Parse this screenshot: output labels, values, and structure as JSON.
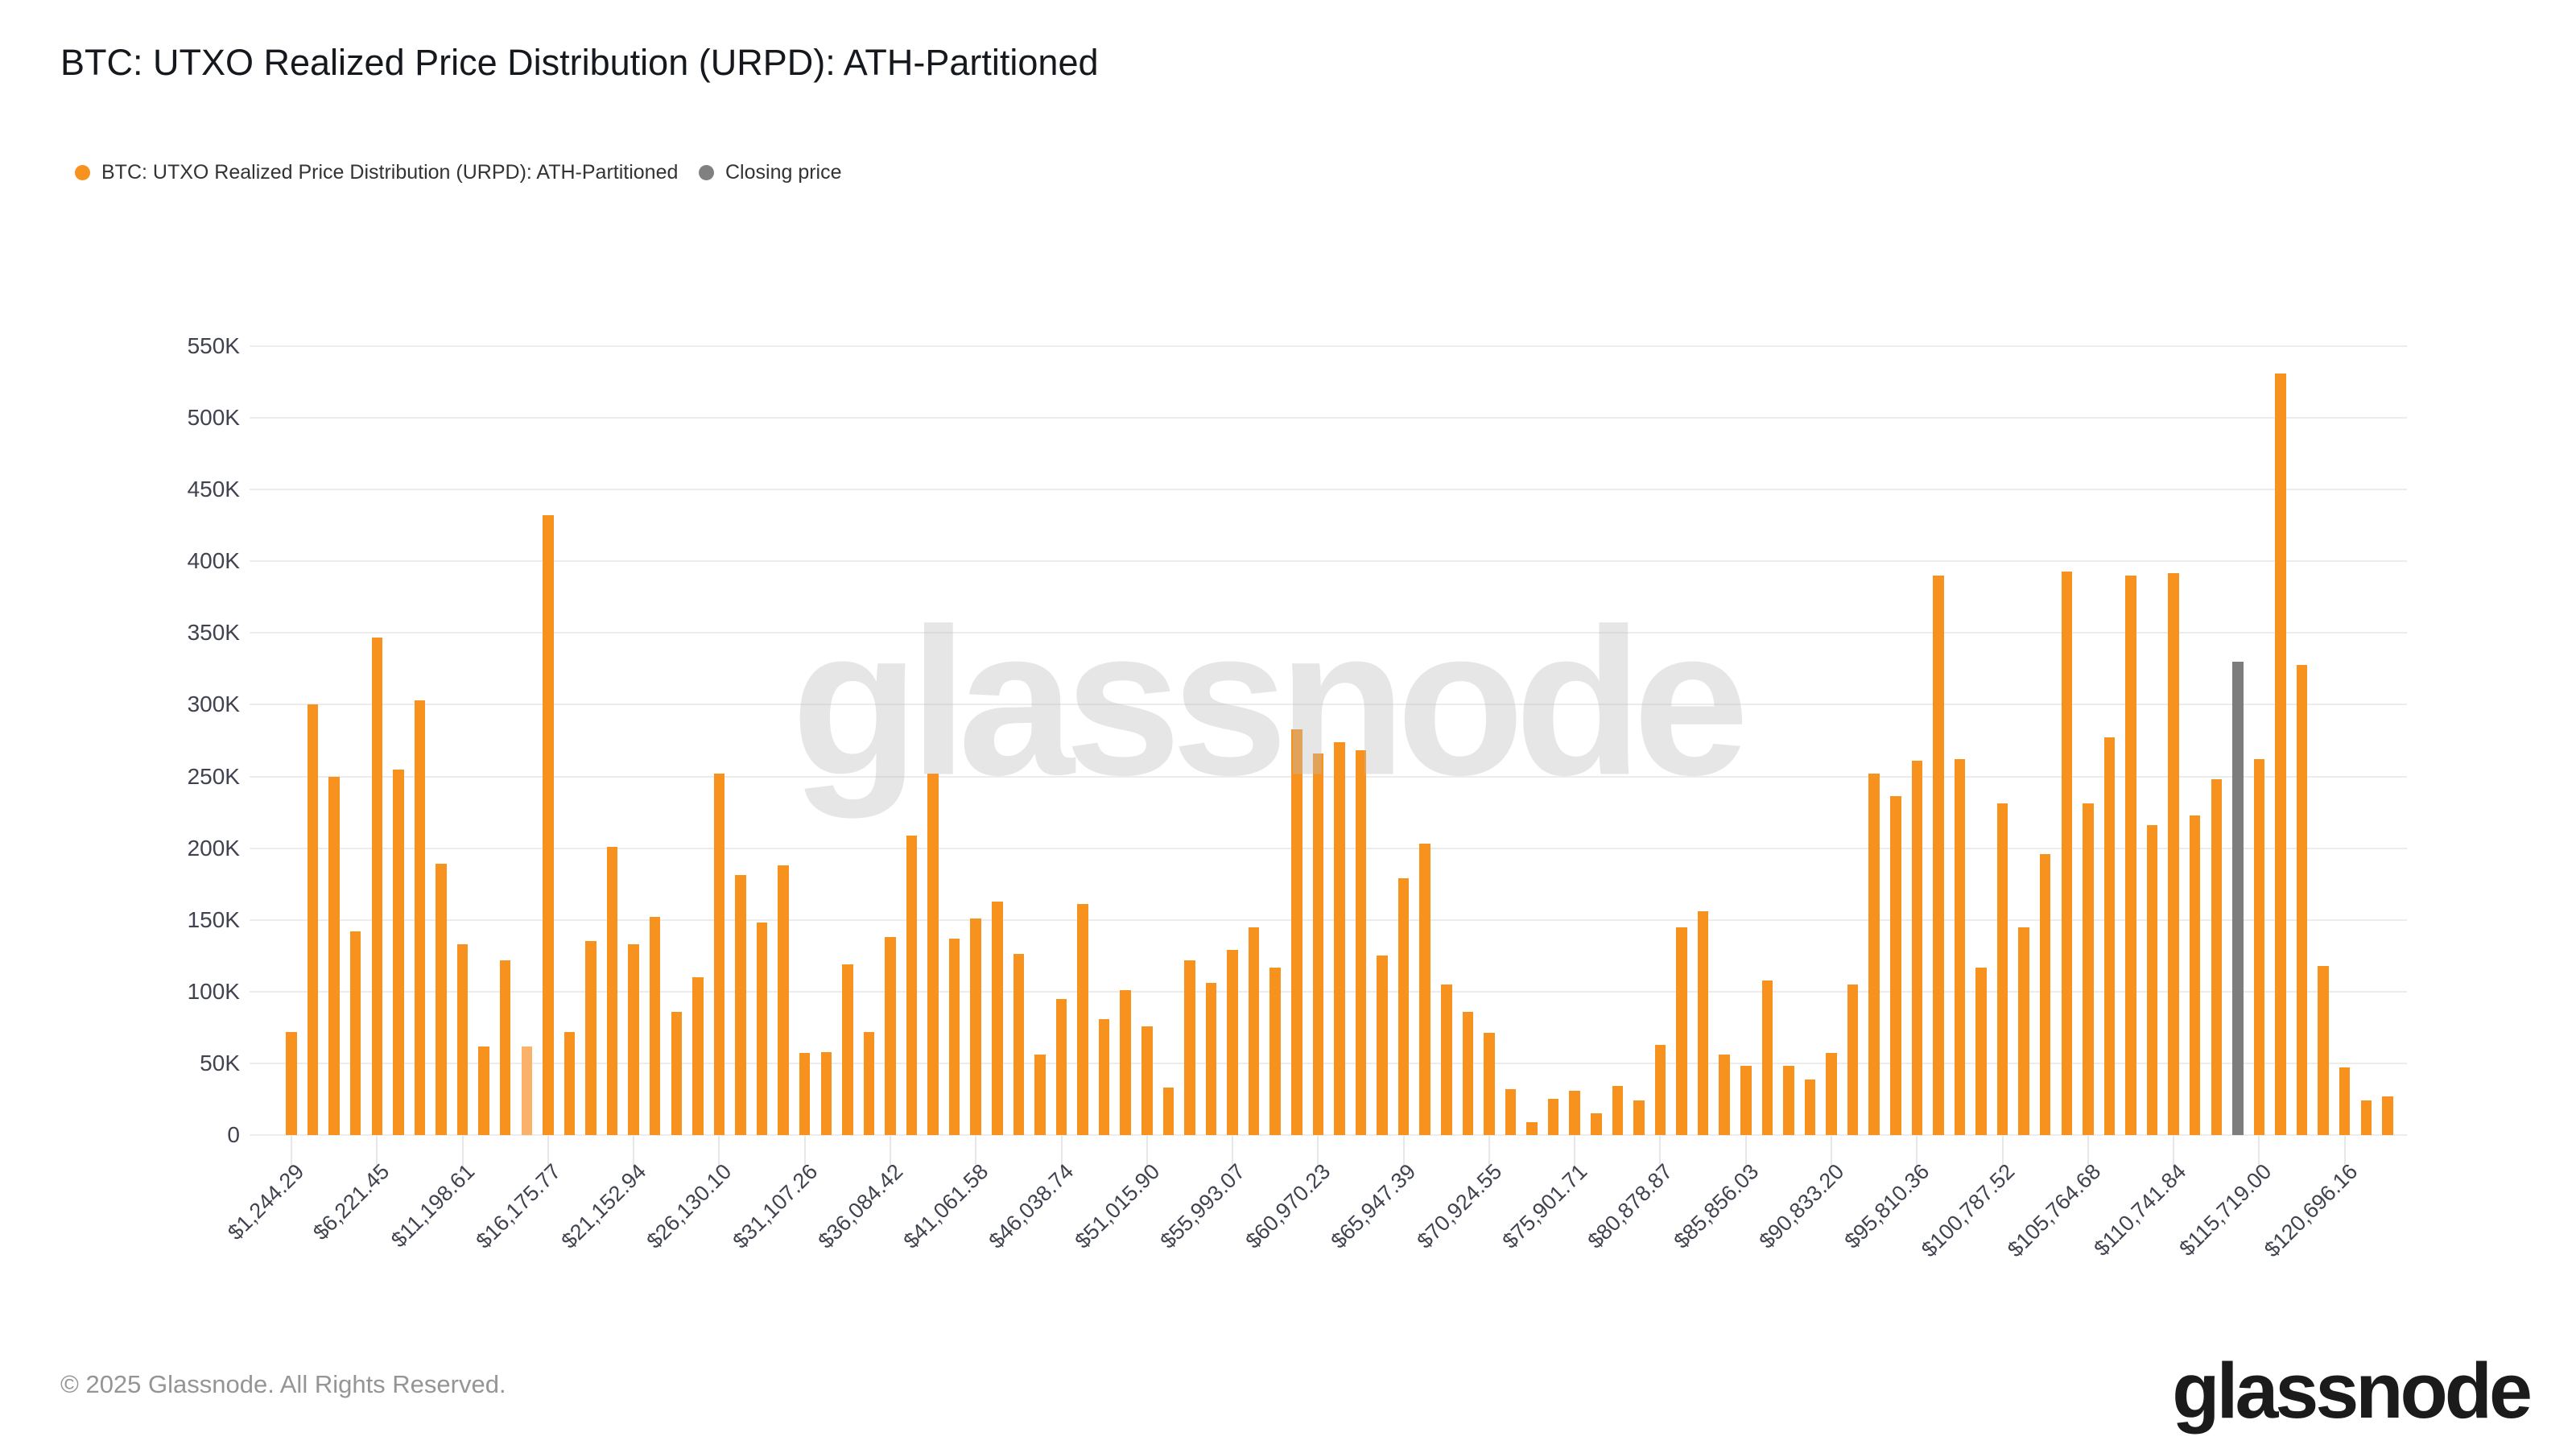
{
  "page": {
    "title": "BTC: UTXO Realized Price Distribution (URPD): ATH-Partitioned"
  },
  "legend": {
    "series": {
      "label": "BTC: UTXO Realized Price Distribution (URPD): ATH-Partitioned",
      "color": "#F7921E"
    },
    "closing": {
      "label": "Closing price",
      "color": "#808080"
    }
  },
  "watermark": "glassnode",
  "footer": {
    "copyright": "© 2025 Glassnode. All Rights Reserved.",
    "brand": "glassnode"
  },
  "colors": {
    "bar": "#F7921E",
    "bar_light": "#FAB169",
    "closing_bar": "#7D7D7D",
    "gridline": "#ececec",
    "axis_text": "#40434f"
  },
  "chart_data": {
    "type": "bar",
    "title": "BTC: UTXO Realized Price Distribution (URPD): ATH-Partitioned",
    "xlabel": "",
    "ylabel": "",
    "unit": "BTC",
    "grid": true,
    "legend_position": "top-left",
    "ylim": [
      0,
      550000
    ],
    "y_tick_labels": [
      "0",
      "50K",
      "100K",
      "150K",
      "200K",
      "250K",
      "300K",
      "350K",
      "400K",
      "450K",
      "500K",
      "550K"
    ],
    "bucket_size_usd": 1244.29,
    "x_tick_interval_bars": 4,
    "x_tick_labels": [
      "$1,244.29",
      "$6,221.45",
      "$11,198.61",
      "$16,175.77",
      "$21,152.94",
      "$26,130.10",
      "$31,107.26",
      "$36,084.42",
      "$41,061.58",
      "$46,038.74",
      "$51,015.90",
      "$55,993.07",
      "$60,970.23",
      "$65,947.39",
      "$70,924.55",
      "$75,901.71",
      "$80,878.87",
      "$85,856.03",
      "$90,833.20",
      "$95,810.36",
      "$100,787.52",
      "$105,764.68",
      "$110,741.84",
      "$115,719.00",
      "$120,696.16"
    ],
    "series": [
      {
        "name": "BTC: UTXO Realized Price Distribution (URPD): ATH-Partitioned",
        "color": "#F7921E",
        "values": [
          72000,
          300000,
          250000,
          142000,
          347000,
          255000,
          303000,
          189000,
          133000,
          62000,
          122000,
          62000,
          432000,
          72000,
          135000,
          201000,
          133000,
          152000,
          86000,
          110000,
          252000,
          181000,
          148000,
          188000,
          57000,
          58000,
          119000,
          72000,
          138000,
          209000,
          252000,
          137000,
          151000,
          163000,
          126000,
          56000,
          95000,
          161000,
          81000,
          101000,
          76000,
          33000,
          122000,
          106000,
          129000,
          145000,
          117000,
          283000,
          266000,
          274000,
          268000,
          125000,
          179000,
          203000,
          105000,
          86000,
          71000,
          32000,
          9000,
          25000,
          31000,
          15000,
          34000,
          24000,
          63000,
          145000,
          156000,
          56000,
          48000,
          108000,
          48000,
          39000,
          57000,
          105000,
          252000,
          236000,
          261000,
          390000,
          262000,
          117000,
          231000,
          145000,
          196000,
          393000,
          231000,
          277000,
          390000,
          216000,
          392000,
          223000,
          248000,
          330000,
          262000,
          531000,
          328000,
          118000,
          47000,
          24000,
          27000
        ]
      }
    ],
    "light_bar_index": 11,
    "closing_price_bar": {
      "index": 91,
      "value": 330000,
      "label": "Closing price",
      "color": "#7D7D7D"
    }
  }
}
